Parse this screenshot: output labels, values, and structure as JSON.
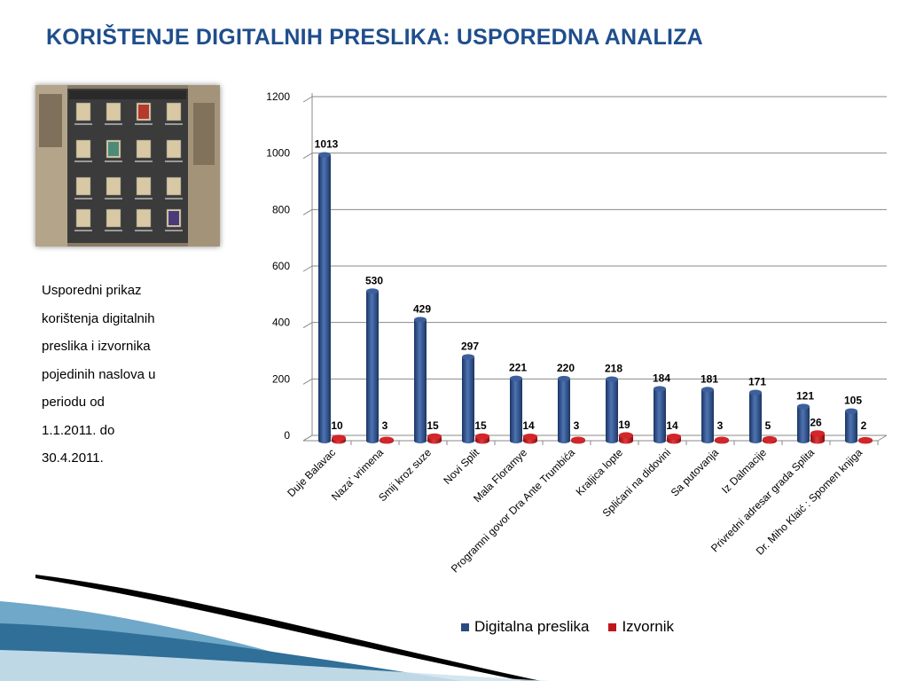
{
  "slide": {
    "title": "KORIŠTENJE DIGITALNIH PRESLIKA: USPOREDNA ANALIZA",
    "caption_lines": [
      "Usporedni prikaz",
      "korištenja digitalnih",
      "preslika i izvornika",
      "pojedinih naslova u",
      "periodu od",
      "1.1.2011. do",
      "30.4.2011."
    ]
  },
  "colors": {
    "title": "#1f4e8c",
    "digital": "#2a4b82",
    "original": "#c0161a"
  },
  "chart_data": {
    "type": "bar",
    "categories": [
      "Duje Balavac",
      "Nazaʼ vrimena",
      "Smij kroz suze",
      "Novi Split",
      "Mala Floramye",
      "Programni govor Dra Ante Trumbića",
      "Kraljica lopte",
      "Splićani na didovini",
      "Sa putovanja",
      "Iz Dalmacije",
      "Privredni adresar grada Splita",
      "Dr. Miho Klaić : Spomen knjiga"
    ],
    "series": [
      {
        "name": "Digitalna preslika",
        "values": [
          1013,
          530,
          429,
          297,
          221,
          220,
          218,
          184,
          181,
          171,
          121,
          105
        ]
      },
      {
        "name": "Izvornik",
        "values": [
          10,
          3,
          15,
          15,
          14,
          3,
          19,
          14,
          3,
          5,
          26,
          2
        ]
      }
    ],
    "yticks": [
      "0",
      "200",
      "400",
      "600",
      "800",
      "1000",
      "1200"
    ],
    "ylim": [
      0,
      1200
    ],
    "grid": true,
    "legend_position": "bottom"
  }
}
